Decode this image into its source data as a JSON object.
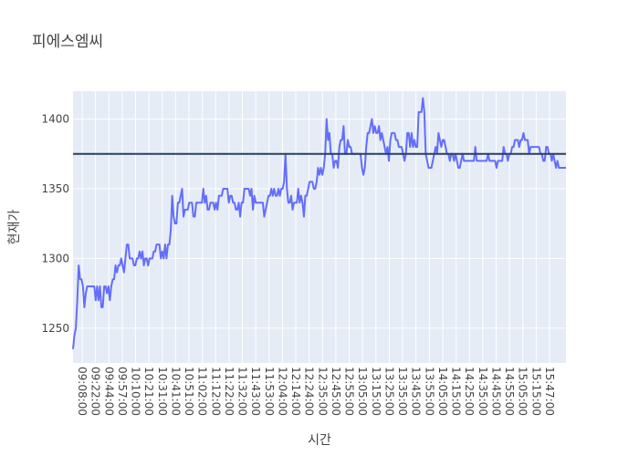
{
  "chart_data": {
    "type": "line",
    "title": "피에스엠씨",
    "xlabel": "시간",
    "ylabel": "현재가",
    "ylim": [
      1225,
      1420
    ],
    "y_ticks": [
      1250,
      1300,
      1350,
      1400
    ],
    "x_tick_labels": [
      "09:08:00",
      "09:22:00",
      "09:44:00",
      "09:57:00",
      "10:10:00",
      "10:21:00",
      "10:31:00",
      "10:41:00",
      "10:51:00",
      "11:02:00",
      "11:12:00",
      "11:22:00",
      "11:32:00",
      "11:43:00",
      "11:53:00",
      "12:04:00",
      "12:14:00",
      "12:24:00",
      "12:35:00",
      "12:45:00",
      "12:55:00",
      "13:05:00",
      "13:15:00",
      "13:25:00",
      "13:35:00",
      "13:45:00",
      "13:55:00",
      "14:05:00",
      "14:15:00",
      "14:25:00",
      "14:35:00",
      "14:45:00",
      "14:55:00",
      "15:05:00",
      "15:15:00",
      "15:47:00"
    ],
    "grid": true,
    "colors": {
      "series": "#636efa",
      "reference_line": "#2a3f5f",
      "plot_bg": "#e5ecf6",
      "grid": "#ffffff"
    },
    "reference_line": {
      "y": 1375
    },
    "series": [
      {
        "values": [
          1235,
          1245,
          1250,
          1270,
          1295,
          1285,
          1285,
          1280,
          1265,
          1275,
          1280,
          1280,
          1280,
          1280,
          1280,
          1280,
          1270,
          1280,
          1270,
          1280,
          1265,
          1265,
          1280,
          1280,
          1275,
          1280,
          1270,
          1280,
          1285,
          1285,
          1295,
          1290,
          1295,
          1295,
          1300,
          1295,
          1290,
          1300,
          1310,
          1310,
          1300,
          1300,
          1300,
          1295,
          1295,
          1300,
          1300,
          1305,
          1300,
          1305,
          1295,
          1300,
          1300,
          1295,
          1300,
          1300,
          1300,
          1305,
          1305,
          1310,
          1310,
          1310,
          1300,
          1305,
          1300,
          1310,
          1300,
          1310,
          1310,
          1320,
          1345,
          1330,
          1325,
          1325,
          1340,
          1340,
          1345,
          1350,
          1330,
          1335,
          1335,
          1335,
          1340,
          1340,
          1340,
          1330,
          1330,
          1340,
          1340,
          1340,
          1340,
          1340,
          1350,
          1340,
          1345,
          1335,
          1335,
          1340,
          1340,
          1340,
          1335,
          1340,
          1335,
          1345,
          1345,
          1345,
          1350,
          1350,
          1350,
          1350,
          1340,
          1345,
          1345,
          1340,
          1340,
          1335,
          1335,
          1340,
          1330,
          1340,
          1340,
          1350,
          1350,
          1350,
          1350,
          1345,
          1350,
          1335,
          1345,
          1340,
          1340,
          1340,
          1340,
          1340,
          1340,
          1330,
          1335,
          1340,
          1345,
          1345,
          1350,
          1345,
          1350,
          1345,
          1345,
          1350,
          1345,
          1350,
          1350,
          1355,
          1375,
          1350,
          1340,
          1340,
          1345,
          1335,
          1340,
          1340,
          1340,
          1350,
          1340,
          1345,
          1340,
          1330,
          1345,
          1345,
          1350,
          1355,
          1355,
          1355,
          1350,
          1350,
          1355,
          1365,
          1360,
          1365,
          1360,
          1365,
          1375,
          1400,
          1385,
          1390,
          1375,
          1375,
          1365,
          1370,
          1370,
          1365,
          1380,
          1385,
          1385,
          1395,
          1375,
          1375,
          1385,
          1380,
          1380,
          1375,
          1375,
          1375,
          1375,
          1375,
          1375,
          1375,
          1365,
          1360,
          1365,
          1380,
          1390,
          1390,
          1395,
          1400,
          1390,
          1395,
          1390,
          1390,
          1395,
          1385,
          1390,
          1385,
          1380,
          1375,
          1380,
          1370,
          1385,
          1390,
          1390,
          1390,
          1385,
          1385,
          1380,
          1380,
          1380,
          1375,
          1370,
          1375,
          1390,
          1390,
          1380,
          1390,
          1380,
          1385,
          1380,
          1380,
          1405,
          1405,
          1405,
          1415,
          1405,
          1375,
          1370,
          1365,
          1365,
          1365,
          1370,
          1375,
          1380,
          1375,
          1390,
          1385,
          1380,
          1385,
          1385,
          1380,
          1375,
          1375,
          1370,
          1375,
          1375,
          1370,
          1375,
          1370,
          1365,
          1365,
          1370,
          1375,
          1370,
          1370,
          1370,
          1370,
          1370,
          1370,
          1370,
          1370,
          1380,
          1370,
          1370,
          1370,
          1370,
          1370,
          1370,
          1370,
          1370,
          1375,
          1370,
          1370,
          1370,
          1370,
          1370,
          1365,
          1370,
          1370,
          1370,
          1370,
          1380,
          1375,
          1375,
          1370,
          1375,
          1375,
          1380,
          1380,
          1385,
          1385,
          1385,
          1380,
          1385,
          1385,
          1390,
          1385,
          1385,
          1385,
          1375,
          1380,
          1380,
          1380,
          1380,
          1380,
          1380,
          1380,
          1375,
          1375,
          1370,
          1370,
          1380,
          1380,
          1375,
          1375,
          1370,
          1375,
          1370,
          1365,
          1370,
          1365,
          1365,
          1365,
          1365,
          1365,
          1365
        ]
      }
    ]
  }
}
